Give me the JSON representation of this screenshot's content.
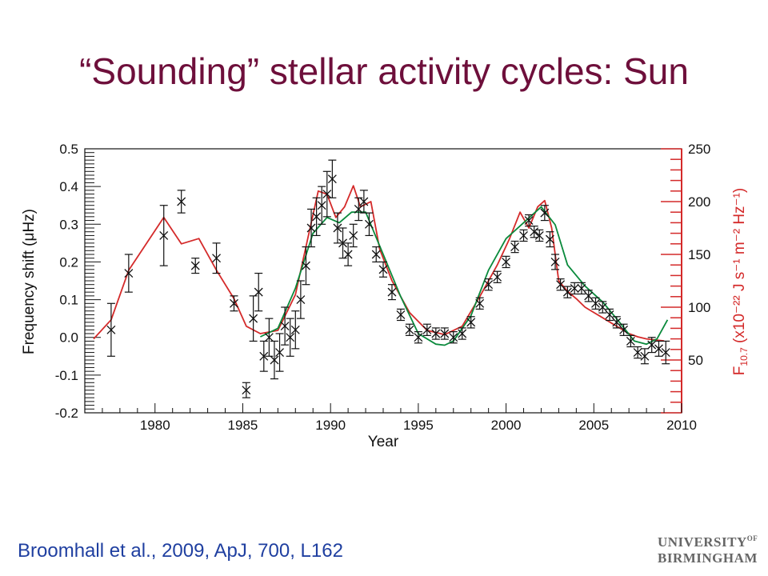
{
  "slide": {
    "title": "“Sounding” stellar activity cycles: Sun",
    "citation": "Broomhall et al., 2009, ApJ, 700, L162",
    "logo_line1": "UNIVERSITY",
    "logo_sup": "OF",
    "logo_line2": "BIRMINGHAM"
  },
  "colors": {
    "title": "#6e0f3b",
    "citation": "#1f3fa0",
    "f107_series": "#d42a2a",
    "smoothed_series": "#0a8a3c",
    "freq_points": "#111111"
  },
  "chart_data": {
    "type": "line",
    "xlabel": "Year",
    "ylabel_left": "Frequency shift (μHz)",
    "ylabel_right_main": "F",
    "ylabel_right_sub": "10.7",
    "ylabel_right_rest": " (x10⁻²² J s⁻¹ m⁻² Hz⁻¹)",
    "xlim": [
      1976,
      2010
    ],
    "ylim_left": [
      -0.2,
      0.5
    ],
    "ylim_right": [
      0,
      250
    ],
    "x_ticks": [
      1980,
      1985,
      1990,
      1995,
      2000,
      2005,
      2010
    ],
    "y_ticks_left": [
      "0.5",
      "0.4",
      "0.3",
      "0.2",
      "0.1",
      "0.0",
      "-0.1",
      "-0.2"
    ],
    "y_ticks_left_values": [
      0.5,
      0.4,
      0.3,
      0.2,
      0.1,
      0.0,
      -0.1,
      -0.2
    ],
    "y_ticks_right": [
      "250",
      "200",
      "150",
      "100",
      "50"
    ],
    "y_ticks_right_values": [
      250,
      200,
      150,
      100,
      50
    ],
    "series": [
      {
        "name": "F10.7",
        "axis": "right",
        "x": [
          1976.5,
          1977.5,
          1978.5,
          1979.5,
          1980.5,
          1981.5,
          1982.5,
          1983.5,
          1984.5,
          1985.2,
          1986.0,
          1987.0,
          1988.0,
          1988.7,
          1989.3,
          1989.8,
          1990.3,
          1990.8,
          1991.3,
          1991.7,
          1992.3,
          1992.8,
          1993.5,
          1994.5,
          1995.5,
          1996.5,
          1997.5,
          1998.5,
          1999.5,
          2000.2,
          2000.8,
          2001.3,
          2001.8,
          2002.2,
          2002.6,
          2003.0,
          2003.5,
          2004.0,
          2004.5,
          2005.0,
          2005.5,
          2006.0,
          2006.5,
          2007.0,
          2007.5,
          2008.0,
          2008.5,
          2009.0
        ],
        "values": [
          70,
          88,
          135,
          160,
          185,
          160,
          165,
          135,
          108,
          82,
          75,
          78,
          112,
          165,
          210,
          207,
          185,
          195,
          215,
          195,
          200,
          155,
          125,
          95,
          78,
          74,
          82,
          110,
          140,
          165,
          190,
          175,
          195,
          201,
          175,
          125,
          115,
          108,
          100,
          95,
          90,
          85,
          80,
          75,
          72,
          70,
          69,
          68
        ]
      },
      {
        "name": "smoothed",
        "axis": "right",
        "x": [
          1986.0,
          1987.0,
          1988.0,
          1989.0,
          1989.8,
          1990.5,
          1991.2,
          1992.0,
          1993.0,
          1994.0,
          1995.0,
          1996.0,
          1996.5,
          1997.0,
          1998.0,
          1999.0,
          2000.0,
          2001.0,
          2002.0,
          2002.8,
          2003.5,
          2004.5,
          2005.5,
          2006.5,
          2007.3,
          2008.0,
          2008.6,
          2009.2
        ],
        "values": [
          72,
          80,
          118,
          170,
          185,
          180,
          190,
          190,
          150,
          110,
          75,
          65,
          64,
          68,
          92,
          135,
          165,
          180,
          195,
          178,
          140,
          120,
          105,
          85,
          68,
          65,
          70,
          88
        ]
      }
    ],
    "points": {
      "name": "Frequency shift",
      "axis": "left",
      "x": [
        1977.5,
        1978.5,
        1980.5,
        1981.5,
        1982.3,
        1983.5,
        1984.5,
        1985.2,
        1985.6,
        1985.9,
        1986.2,
        1986.5,
        1986.8,
        1987.1,
        1987.4,
        1987.7,
        1988.0,
        1988.3,
        1988.6,
        1988.9,
        1989.2,
        1989.5,
        1989.8,
        1990.1,
        1990.4,
        1990.7,
        1991.0,
        1991.3,
        1991.6,
        1991.9,
        1992.2,
        1992.6,
        1993.0,
        1993.5,
        1994.0,
        1994.5,
        1995.0,
        1995.5,
        1996.0,
        1996.5,
        1997.0,
        1997.5,
        1998.0,
        1998.5,
        1999.0,
        1999.5,
        2000.0,
        2000.5,
        2001.0,
        2001.3,
        2001.6,
        2001.9,
        2002.2,
        2002.5,
        2002.8,
        2003.1,
        2003.5,
        2003.9,
        2004.3,
        2004.7,
        2005.1,
        2005.5,
        2005.9,
        2006.3,
        2006.7,
        2007.1,
        2007.5,
        2007.9,
        2008.3,
        2008.7,
        2009.1
      ],
      "values": [
        0.02,
        0.17,
        0.27,
        0.36,
        0.19,
        0.21,
        0.09,
        -0.14,
        0.05,
        0.12,
        -0.05,
        0.0,
        -0.06,
        -0.04,
        0.03,
        0.0,
        0.02,
        0.1,
        0.19,
        0.29,
        0.32,
        0.35,
        0.38,
        0.42,
        0.29,
        0.25,
        0.22,
        0.27,
        0.34,
        0.36,
        0.3,
        0.22,
        0.18,
        0.12,
        0.06,
        0.02,
        0.0,
        0.02,
        0.01,
        0.01,
        0.0,
        0.01,
        0.04,
        0.09,
        0.14,
        0.16,
        0.2,
        0.24,
        0.27,
        0.31,
        0.28,
        0.27,
        0.33,
        0.26,
        0.2,
        0.14,
        0.12,
        0.13,
        0.13,
        0.11,
        0.09,
        0.08,
        0.06,
        0.04,
        0.02,
        -0.01,
        -0.04,
        -0.05,
        -0.02,
        -0.03,
        -0.04
      ],
      "errors": [
        0.07,
        0.05,
        0.08,
        0.03,
        0.02,
        0.04,
        0.02,
        0.02,
        0.06,
        0.05,
        0.04,
        0.05,
        0.05,
        0.05,
        0.05,
        0.05,
        0.05,
        0.05,
        0.05,
        0.05,
        0.05,
        0.05,
        0.06,
        0.05,
        0.04,
        0.04,
        0.03,
        0.03,
        0.03,
        0.03,
        0.03,
        0.02,
        0.02,
        0.02,
        0.015,
        0.015,
        0.015,
        0.015,
        0.015,
        0.015,
        0.015,
        0.015,
        0.015,
        0.015,
        0.015,
        0.015,
        0.015,
        0.015,
        0.015,
        0.015,
        0.015,
        0.015,
        0.02,
        0.02,
        0.02,
        0.015,
        0.015,
        0.015,
        0.015,
        0.015,
        0.015,
        0.015,
        0.015,
        0.015,
        0.015,
        0.015,
        0.015,
        0.02,
        0.02,
        0.02,
        0.03
      ]
    }
  }
}
